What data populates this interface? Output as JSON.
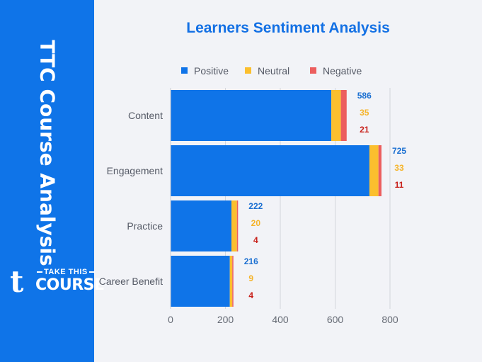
{
  "sidebar": {
    "title": "TTC Course Analysis",
    "logo": {
      "mark": "t",
      "top_text": "TAKE THIS",
      "bottom_text": "COURSE"
    }
  },
  "colors": {
    "sidebar_bg": "#0f74e8",
    "positive": "#0f74e8",
    "neutral": "#fbbf2e",
    "negative": "#ec5e5e",
    "label_positive": "#1a6fd1",
    "label_neutral": "#f5b42a",
    "label_negative": "#c8211b"
  },
  "chart_data": {
    "type": "bar",
    "orientation": "horizontal",
    "stacked": true,
    "title": "Learners Sentiment Analysis",
    "categories": [
      "Content",
      "Engagement",
      "Practice",
      "Career Benefit"
    ],
    "series": [
      {
        "name": "Positive",
        "values": [
          586,
          725,
          222,
          216
        ]
      },
      {
        "name": "Neutral",
        "values": [
          35,
          33,
          20,
          9
        ]
      },
      {
        "name": "Negative",
        "values": [
          21,
          11,
          4,
          4
        ]
      }
    ],
    "xlim": [
      0,
      800
    ],
    "xticks": [
      "0",
      "200",
      "400",
      "600",
      "800"
    ],
    "legend": "top",
    "grid": "vertical"
  }
}
